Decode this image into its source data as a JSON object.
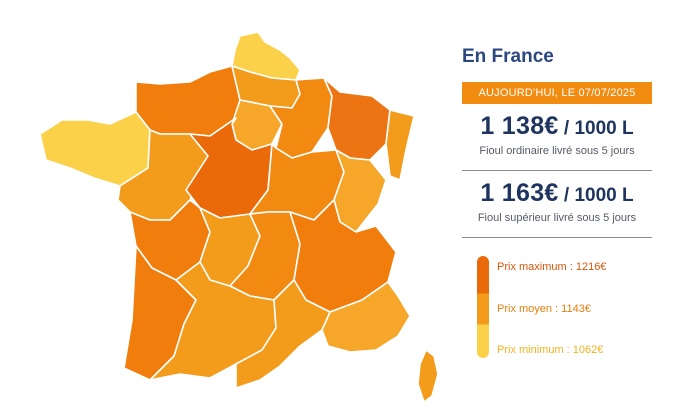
{
  "panel": {
    "title": "En France",
    "date_banner": "AUJOURD'HUI, LE 07/07/2025",
    "ordinaire": {
      "price": "1 138€",
      "unit": " / 1000 L",
      "description": "Fioul ordinaire livré sous 5 jours"
    },
    "superieur": {
      "price": "1 163€",
      "unit": " / 1000 L",
      "description": "Fioul supérieur livré sous 5 jours"
    }
  },
  "legend": {
    "max_label": "Prix maximum : 1216€",
    "moyen_label": "Prix moyen : 1143€",
    "min_label": "Prix minimum : 1062€"
  },
  "colors": {
    "max": "#ea6a0a",
    "high": "#f07d0c",
    "moyen": "#f39b1a",
    "low": "#f6a72a",
    "min": "#fcd14a",
    "title": "#2b4780",
    "banner": "#f28c10"
  }
}
